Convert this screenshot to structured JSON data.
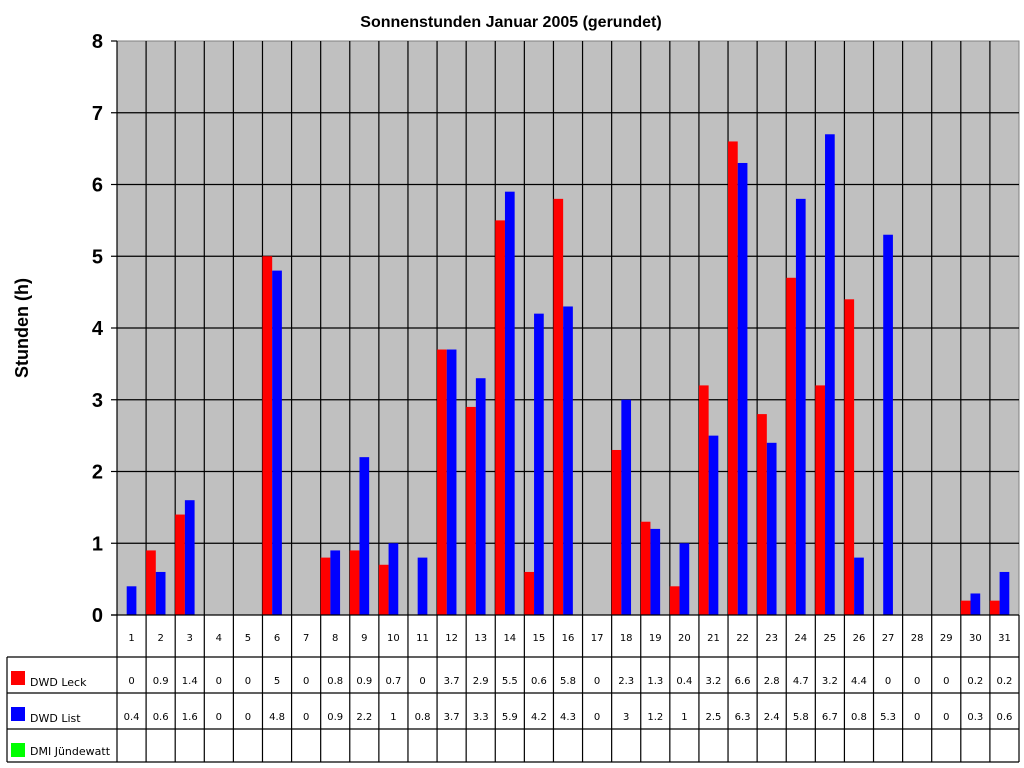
{
  "chart_data": {
    "type": "bar",
    "title": "Sonnenstunden Januar 2005 (gerundet)",
    "xlabel": "",
    "ylabel": "Stunden (h)",
    "ylim": [
      0,
      8
    ],
    "yticks": [
      0,
      1,
      2,
      3,
      4,
      5,
      6,
      7,
      8
    ],
    "grid": true,
    "legend_position": "data-table-left",
    "categories": [
      "1",
      "2",
      "3",
      "4",
      "5",
      "6",
      "7",
      "8",
      "9",
      "10",
      "11",
      "12",
      "13",
      "14",
      "15",
      "16",
      "17",
      "18",
      "19",
      "20",
      "21",
      "22",
      "23",
      "24",
      "25",
      "26",
      "27",
      "28",
      "29",
      "30",
      "31"
    ],
    "series": [
      {
        "name": "DWD Leck",
        "color": "#ff0000",
        "values": [
          0,
          0.9,
          1.4,
          0,
          0,
          5,
          0,
          0.8,
          0.9,
          0.7,
          0,
          3.7,
          2.9,
          5.5,
          0.6,
          5.8,
          0,
          2.3,
          1.3,
          0.4,
          3.2,
          6.6,
          2.8,
          4.7,
          3.2,
          4.4,
          0,
          0,
          0,
          0.2,
          0.2
        ],
        "labels": [
          "0",
          "0.9",
          "1.4",
          "0",
          "0",
          "5",
          "0",
          "0.8",
          "0.9",
          "0.7",
          "0",
          "3.7",
          "2.9",
          "5.5",
          "0.6",
          "5.8",
          "0",
          "2.3",
          "1.3",
          "0.4",
          "3.2",
          "6.6",
          "2.8",
          "4.7",
          "3.2",
          "4.4",
          "0",
          "0",
          "0",
          "0.2",
          "0.2"
        ]
      },
      {
        "name": "DWD List",
        "color": "#0000ff",
        "values": [
          0.4,
          0.6,
          1.6,
          0,
          0,
          4.8,
          0,
          0.9,
          2.2,
          1,
          0.8,
          3.7,
          3.3,
          5.9,
          4.2,
          4.3,
          0,
          3,
          1.2,
          1,
          2.5,
          6.3,
          2.4,
          5.8,
          6.7,
          0.8,
          5.3,
          0,
          0,
          0.3,
          0.6
        ],
        "labels": [
          "0.4",
          "0.6",
          "1.6",
          "0",
          "0",
          "4.8",
          "0",
          "0.9",
          "2.2",
          "1",
          "0.8",
          "3.7",
          "3.3",
          "5.9",
          "4.2",
          "4.3",
          "0",
          "3",
          "1.2",
          "1",
          "2.5",
          "6.3",
          "2.4",
          "5.8",
          "6.7",
          "0.8",
          "5.3",
          "0",
          "0",
          "0.3",
          "0.6"
        ]
      },
      {
        "name": "DMI Jündewatt",
        "color": "#00ff00",
        "values": [
          null,
          null,
          null,
          null,
          null,
          null,
          null,
          null,
          null,
          null,
          null,
          null,
          null,
          null,
          null,
          null,
          null,
          null,
          null,
          null,
          null,
          null,
          null,
          null,
          null,
          null,
          null,
          null,
          null,
          null,
          null
        ],
        "labels": [
          "",
          "",
          "",
          "",
          "",
          "",
          "",
          "",
          "",
          "",
          "",
          "",
          "",
          "",
          "",
          "",
          "",
          "",
          "",
          "",
          "",
          "",
          "",
          "",
          "",
          "",
          "",
          "",
          "",
          "",
          ""
        ]
      }
    ]
  },
  "style": {
    "plot_background": "#c0c0c0",
    "grid_color": "#000000"
  }
}
